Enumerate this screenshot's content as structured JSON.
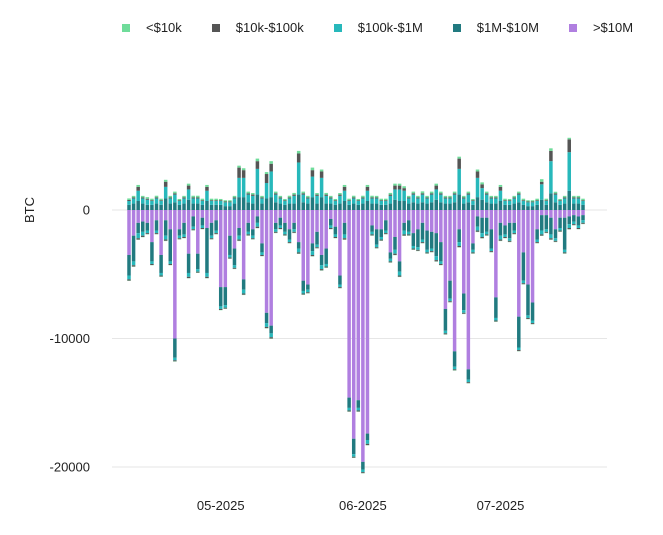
{
  "chart_data": {
    "type": "bar",
    "stacked": true,
    "title": "",
    "xlabel": "",
    "ylabel": "BTC",
    "ylim": [
      -20500,
      7500
    ],
    "yticks": [
      0,
      -10000,
      -20000
    ],
    "ytick_labels": [
      "0",
      "-10000",
      "-20000"
    ],
    "xtick_labels": [
      "05-2025",
      "06-2025",
      "07-2025"
    ],
    "xtick_dates": [
      "2025-05-01",
      "2025-06-01",
      "2025-07-01"
    ],
    "grid": true,
    "legend_position": "top",
    "start_date": "2025-04-11",
    "series": [
      {
        "name": "<$10k",
        "color": "#6fdc9a",
        "pos": [
          120,
          120,
          150,
          120,
          120,
          120,
          130,
          120,
          150,
          120,
          130,
          100,
          120,
          150,
          130,
          130,
          120,
          150,
          120,
          120,
          100,
          100,
          100,
          120,
          150,
          150,
          130,
          120,
          200,
          120,
          150,
          200,
          130,
          120,
          100,
          130,
          130,
          200,
          130,
          120,
          200,
          120,
          150,
          130,
          120,
          100,
          120,
          150,
          120,
          130,
          100,
          130,
          150,
          130,
          120,
          120,
          120,
          130,
          150,
          150,
          150,
          120,
          130,
          120,
          150,
          120,
          130,
          150,
          130,
          120,
          120,
          130,
          150,
          120,
          130,
          100,
          150,
          150,
          130,
          120,
          120,
          150,
          120,
          100,
          120,
          130,
          120,
          100,
          100,
          120,
          200,
          120,
          200,
          120,
          100,
          120,
          120,
          120,
          120,
          120
        ],
        "neg": [
          -20,
          -20,
          -20,
          -20,
          -20,
          -20,
          -20,
          -20,
          -20,
          -20,
          -20,
          -20,
          -20,
          -20,
          -20,
          -20,
          -20,
          -20,
          -20,
          -20,
          -20,
          -20,
          -20,
          -20,
          -20,
          -20,
          -20,
          -20,
          -20,
          -20,
          -20,
          -20,
          -20,
          -20,
          -20,
          -20,
          -20,
          -20,
          -20,
          -20,
          -20,
          -20,
          -20,
          -20,
          -20,
          -20,
          -20,
          -20,
          -20,
          -20,
          -20,
          -20,
          -20,
          -20,
          -20,
          -20,
          -20,
          -20,
          -20,
          -20,
          -20,
          -20,
          -20,
          -20,
          -20,
          -20,
          -20,
          -20,
          -20,
          -20,
          -20,
          -20,
          -20,
          -20,
          -20,
          -20,
          -20,
          -20,
          -20,
          -20,
          -20,
          -20,
          -20,
          -20,
          -20,
          -20,
          -20,
          -20,
          -20,
          -20,
          -20,
          -20,
          -20,
          -20,
          -20,
          -20,
          -20,
          -20,
          -20,
          -20
        ]
      },
      {
        "name": "$10k-$100k",
        "color": "#555555",
        "pos": [
          80,
          80,
          300,
          80,
          80,
          60,
          80,
          60,
          400,
          80,
          100,
          60,
          80,
          300,
          80,
          80,
          60,
          300,
          60,
          60,
          60,
          60,
          60,
          80,
          800,
          600,
          100,
          100,
          600,
          80,
          700,
          600,
          100,
          80,
          60,
          80,
          100,
          700,
          100,
          80,
          500,
          100,
          500,
          100,
          80,
          60,
          100,
          300,
          60,
          80,
          60,
          80,
          300,
          80,
          80,
          60,
          60,
          100,
          300,
          300,
          200,
          80,
          100,
          80,
          100,
          80,
          100,
          300,
          100,
          80,
          80,
          100,
          800,
          80,
          100,
          60,
          500,
          300,
          100,
          80,
          80,
          300,
          60,
          60,
          80,
          100,
          60,
          60,
          60,
          60,
          200,
          60,
          800,
          100,
          60,
          80,
          1000,
          80,
          80,
          60
        ],
        "neg": [
          -100,
          -100,
          -100,
          -100,
          -80,
          -80,
          -80,
          -80,
          -100,
          -80,
          -80,
          -80,
          -80,
          -100,
          -80,
          -80,
          -80,
          -100,
          -80,
          -80,
          -80,
          -80,
          -80,
          -80,
          -100,
          -100,
          -80,
          -80,
          -100,
          -80,
          -100,
          -100,
          -80,
          -80,
          -80,
          -80,
          -80,
          -100,
          -80,
          -80,
          -100,
          -80,
          -100,
          -80,
          -80,
          -80,
          -80,
          -100,
          -80,
          -80,
          -80,
          -80,
          -100,
          -80,
          -80,
          -80,
          -80,
          -80,
          -100,
          -100,
          -100,
          -80,
          -80,
          -80,
          -80,
          -80,
          -80,
          -100,
          -80,
          -80,
          -80,
          -80,
          -100,
          -80,
          -80,
          -80,
          -100,
          -100,
          -80,
          -80,
          -80,
          -100,
          -80,
          -80,
          -80,
          -80,
          -80,
          -80,
          -80,
          -80,
          -100,
          -80,
          -100,
          -80,
          -80,
          -80,
          -100,
          -80,
          -80,
          -80
        ]
      },
      {
        "name": "$100k-$1M",
        "color": "#27b8bb",
        "pos": [
          300,
          400,
          800,
          400,
          400,
          300,
          400,
          300,
          900,
          400,
          600,
          300,
          400,
          800,
          400,
          400,
          300,
          800,
          300,
          300,
          300,
          300,
          300,
          400,
          1500,
          1500,
          600,
          600,
          2000,
          400,
          1200,
          2000,
          600,
          400,
          300,
          400,
          600,
          2500,
          600,
          400,
          1600,
          600,
          1500,
          600,
          400,
          300,
          600,
          800,
          300,
          400,
          300,
          400,
          800,
          400,
          400,
          300,
          300,
          600,
          800,
          900,
          800,
          400,
          600,
          400,
          600,
          400,
          600,
          800,
          600,
          400,
          400,
          600,
          2000,
          400,
          600,
          300,
          1500,
          900,
          600,
          400,
          400,
          800,
          300,
          300,
          400,
          600,
          300,
          300,
          300,
          300,
          1200,
          300,
          2500,
          600,
          300,
          400,
          3000,
          400,
          400,
          300
        ],
        "neg": [
          -300,
          -300,
          -400,
          -300,
          -200,
          -200,
          -200,
          -200,
          -300,
          -200,
          -200,
          -200,
          -200,
          -300,
          -200,
          -200,
          -200,
          -300,
          -200,
          -200,
          -200,
          -200,
          -200,
          -200,
          -300,
          -300,
          -200,
          -200,
          -300,
          -200,
          -300,
          -300,
          -200,
          -200,
          -200,
          -200,
          -200,
          -300,
          -200,
          -200,
          -300,
          -200,
          -300,
          -200,
          -200,
          -200,
          -200,
          -300,
          -200,
          -200,
          -200,
          -200,
          -300,
          -200,
          -200,
          -200,
          -200,
          -200,
          -300,
          -300,
          -300,
          -200,
          -200,
          -200,
          -200,
          -200,
          -200,
          -300,
          -200,
          -200,
          -200,
          -200,
          -300,
          -200,
          -200,
          -200,
          -300,
          -300,
          -200,
          -200,
          -200,
          -300,
          -200,
          -200,
          -200,
          -200,
          -200,
          -200,
          -200,
          -200,
          -300,
          -200,
          -300,
          -200,
          -200,
          -200,
          -300,
          -200,
          -200,
          -200
        ]
      },
      {
        "name": "$1M-$10M",
        "color": "#217a80",
        "pos": [
          400,
          500,
          700,
          500,
          400,
          400,
          500,
          400,
          900,
          500,
          600,
          400,
          500,
          800,
          500,
          500,
          400,
          700,
          400,
          400,
          400,
          300,
          300,
          500,
          1000,
          1000,
          600,
          500,
          1200,
          500,
          900,
          1000,
          600,
          500,
          400,
          500,
          500,
          1200,
          600,
          500,
          1000,
          500,
          1000,
          500,
          500,
          400,
          500,
          700,
          400,
          500,
          400,
          500,
          700,
          500,
          500,
          400,
          400,
          500,
          800,
          700,
          700,
          500,
          600,
          500,
          600,
          500,
          600,
          800,
          600,
          500,
          500,
          600,
          1200,
          500,
          600,
          400,
          1000,
          800,
          600,
          500,
          500,
          700,
          400,
          400,
          500,
          600,
          400,
          300,
          300,
          400,
          800,
          400,
          1300,
          600,
          400,
          500,
          1500,
          500,
          500,
          400
        ],
        "neg": [
          -1600,
          -2000,
          -800,
          -800,
          -600,
          -1500,
          -800,
          -1400,
          -1200,
          -2500,
          -1500,
          -500,
          -900,
          -1500,
          -800,
          -1200,
          -600,
          -3500,
          -1000,
          -800,
          -1500,
          -1400,
          -1500,
          -1300,
          -600,
          -800,
          -700,
          -500,
          -500,
          -700,
          -800,
          -600,
          -500,
          -600,
          -700,
          -800,
          -500,
          -500,
          -800,
          -400,
          -600,
          -1000,
          -800,
          -1200,
          -500,
          -600,
          -700,
          -900,
          -800,
          -1200,
          -600,
          -600,
          -500,
          -500,
          -1200,
          -600,
          -800,
          -500,
          -1000,
          -800,
          -600,
          -900,
          -1000,
          -1400,
          -1300,
          -1500,
          -1300,
          -1800,
          -1500,
          -1700,
          -1400,
          -1200,
          -1000,
          -1300,
          -800,
          -500,
          -800,
          -1200,
          -1100,
          -1500,
          -1600,
          -1000,
          -700,
          -1200,
          -600,
          -2400,
          -2200,
          -2400,
          -1400,
          -800,
          -1200,
          -1100,
          -1300,
          -700,
          -800,
          -2500,
          -600,
          -500,
          -700,
          -400
        ]
      },
      {
        "name": ">$10M",
        "color": "#b07fe0",
        "pos": [
          0,
          0,
          0,
          0,
          0,
          0,
          0,
          0,
          0,
          0,
          0,
          0,
          0,
          0,
          0,
          0,
          0,
          0,
          0,
          0,
          0,
          0,
          0,
          0,
          0,
          0,
          0,
          0,
          0,
          0,
          0,
          0,
          0,
          0,
          0,
          0,
          0,
          0,
          0,
          0,
          0,
          0,
          0,
          0,
          0,
          0,
          0,
          0,
          0,
          0,
          0,
          0,
          0,
          0,
          0,
          0,
          0,
          0,
          0,
          0,
          0,
          0,
          0,
          0,
          0,
          0,
          0,
          0,
          0,
          0,
          0,
          0,
          0,
          0,
          0,
          0,
          0,
          0,
          0,
          0,
          0,
          0,
          0,
          0,
          0,
          0,
          0,
          0,
          0,
          0,
          0,
          0,
          0,
          0,
          0,
          0,
          0,
          0,
          0,
          0
        ],
        "neg": [
          -3500,
          -2000,
          -1000,
          -900,
          -1000,
          -2500,
          -800,
          -3500,
          -800,
          -1500,
          -10000,
          -1500,
          -1000,
          -3400,
          -500,
          -3400,
          -600,
          -1400,
          -1000,
          -800,
          -6000,
          -6000,
          -2000,
          -3000,
          -1400,
          -5400,
          -1000,
          -1500,
          -500,
          -2600,
          -8000,
          -9000,
          -1000,
          -600,
          -1000,
          -1500,
          -1000,
          -2500,
          -5500,
          -5800,
          -2600,
          -1700,
          -3500,
          -3000,
          -700,
          -1300,
          -5100,
          -1000,
          -14600,
          -17800,
          -14800,
          -19600,
          -17400,
          -1200,
          -1500,
          -1500,
          -800,
          -3300,
          -2100,
          -4000,
          -1000,
          -800,
          -1800,
          -1500,
          -1000,
          -1600,
          -1700,
          -1800,
          -2500,
          -7700,
          -5500,
          -11000,
          -1500,
          -6500,
          -12400,
          -2600,
          -500,
          -600,
          -600,
          -1500,
          -6800,
          -1000,
          -1200,
          -1000,
          -1000,
          -8300,
          -3300,
          -5800,
          -7200,
          -1500,
          -400,
          -400,
          -600,
          -1500,
          -600,
          -600,
          -500,
          -400,
          -500,
          -400
        ]
      }
    ]
  },
  "legend": {
    "items": [
      {
        "label": "<$10k",
        "color": "#6fdc9a"
      },
      {
        "label": "$10k-$100k",
        "color": "#555555"
      },
      {
        "label": "$100k-$1M",
        "color": "#27b8bb"
      },
      {
        "label": "$1M-$10M",
        "color": "#217a80"
      },
      {
        "label": ">$10M",
        "color": "#b07fe0"
      }
    ]
  }
}
